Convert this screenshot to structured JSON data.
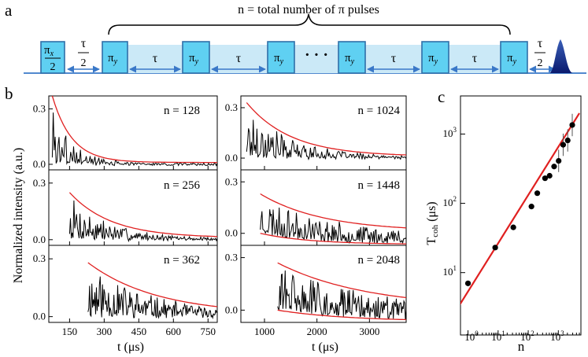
{
  "panel_a": {
    "label": "a",
    "brace_label": "n = total number of π pulses",
    "first_pulse": {
      "main": "π",
      "sub": "x",
      "den": "2"
    },
    "pi_y": {
      "main": "π",
      "sub": "y"
    },
    "tau": "τ",
    "half_tau": {
      "num": "τ",
      "den": "2"
    },
    "dots": "· · ·"
  },
  "panel_b": {
    "label": "b",
    "ylabel": "Normalized intensity (a.u.)",
    "left_xlabel": "t (μs)",
    "right_xlabel": "t (μs)",
    "left_xticks": [
      "150",
      "300",
      "450",
      "600",
      "750"
    ],
    "right_xticks": [
      "1000",
      "2000",
      "3000"
    ],
    "yticks": [
      "0.0",
      "0.3"
    ]
  },
  "panel_c": {
    "label": "c",
    "ylabel_main": "T",
    "ylabel_sub": "coh",
    "ylabel_unit": " (μs)",
    "xlabel": "n",
    "xticks": [
      {
        "base": "10",
        "exp": "0"
      },
      {
        "base": "10",
        "exp": "1"
      },
      {
        "base": "10",
        "exp": "2"
      },
      {
        "base": "10",
        "exp": "3"
      }
    ],
    "yticks": [
      {
        "base": "10",
        "exp": "1"
      },
      {
        "base": "10",
        "exp": "2"
      },
      {
        "base": "10",
        "exp": "3"
      }
    ]
  },
  "chart_data": [
    {
      "type": "line",
      "panel": "b",
      "title": "n = 128",
      "xlabel": "t (μs)",
      "ylabel": "Normalized intensity (a.u.)",
      "xlim": [
        60,
        790
      ],
      "ylim": [
        -0.03,
        0.37
      ],
      "start": 75,
      "amp": 0.36,
      "tau": 85,
      "envelope": "single",
      "seed": 3
    },
    {
      "type": "line",
      "panel": "b",
      "title": "n = 256",
      "xlabel": "t (μs)",
      "ylabel": "Normalized intensity (a.u.)",
      "xlim": [
        60,
        790
      ],
      "ylim": [
        -0.03,
        0.37
      ],
      "start": 150,
      "amp": 0.24,
      "tau": 180,
      "envelope": "single",
      "seed": 7
    },
    {
      "type": "line",
      "panel": "b",
      "title": "n = 362",
      "xlabel": "t (μs)",
      "ylabel": "Normalized intensity (a.u.)",
      "xlim": [
        60,
        790
      ],
      "ylim": [
        -0.03,
        0.37
      ],
      "start": 230,
      "amp": 0.27,
      "tau": 300,
      "envelope": "single",
      "seed": 11
    },
    {
      "type": "line",
      "panel": "b",
      "title": "n = 1024",
      "xlabel": "t (μs)",
      "ylabel": "Normalized intensity (a.u.)",
      "xlim": [
        550,
        3700
      ],
      "ylim": [
        -0.07,
        0.37
      ],
      "start": 660,
      "amp": 0.32,
      "tau": 850,
      "envelope": "single",
      "seed": 17
    },
    {
      "type": "line",
      "panel": "b",
      "title": "n = 1448",
      "xlabel": "t (μs)",
      "ylabel": "Normalized intensity (a.u.)",
      "xlim": [
        550,
        3700
      ],
      "ylim": [
        -0.07,
        0.37
      ],
      "start": 920,
      "amp": 0.22,
      "tau": 1200,
      "envelope": "double",
      "seed": 23
    },
    {
      "type": "line",
      "panel": "b",
      "title": "n = 2048",
      "xlabel": "t (μs)",
      "ylabel": "Normalized intensity (a.u.)",
      "xlim": [
        550,
        3700
      ],
      "ylim": [
        -0.07,
        0.37
      ],
      "start": 1250,
      "amp": 0.26,
      "tau": 1700,
      "envelope": "double",
      "seed": 31
    },
    {
      "type": "scatter",
      "panel": "c",
      "xlabel": "n",
      "ylabel": "Tcoh (μs)",
      "x": [
        1,
        8,
        32,
        128,
        200,
        362,
        512,
        724,
        1024,
        1448,
        2048
      ],
      "y": [
        7,
        23,
        45,
        90,
        140,
        230,
        250,
        340,
        410,
        700,
        810
      ],
      "extra_point": {
        "x": 2900,
        "y": 1350
      },
      "fit_line": {
        "x": [
          0.5,
          5000
        ],
        "y": [
          3.3,
          2000
        ]
      },
      "xlim_log10": [
        -0.25,
        3.75
      ],
      "ylim_log10": [
        0.1,
        3.55
      ]
    }
  ]
}
